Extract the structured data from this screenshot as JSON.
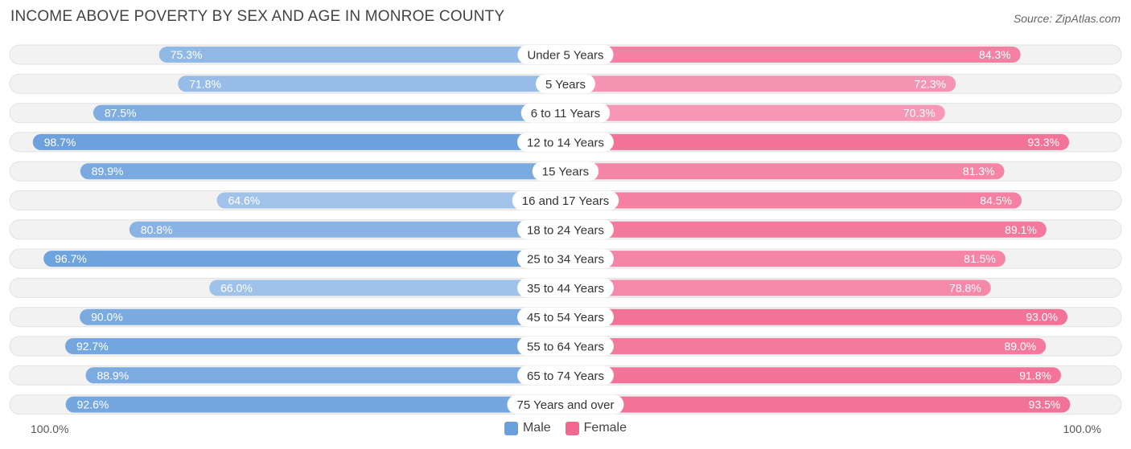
{
  "title": "INCOME ABOVE POVERTY BY SEX AND AGE IN MONROE COUNTY",
  "source": "Source: ZipAtlas.com",
  "axis": {
    "left_label": "100.0%",
    "right_label": "100.0%"
  },
  "legend": {
    "male_label": "Male",
    "female_label": "Female"
  },
  "colors": {
    "male_light": "#a8c8ec",
    "male_dark": "#6aa0dc",
    "female_light": "#f7a8c2",
    "female_dark": "#f2678f",
    "track": "#f2f2f2"
  },
  "chart_data": {
    "type": "bar",
    "orientation": "horizontal-diverging",
    "categories": [
      "Under 5 Years",
      "5 Years",
      "6 to 11 Years",
      "12 to 14 Years",
      "15 Years",
      "16 and 17 Years",
      "18 to 24 Years",
      "25 to 34 Years",
      "35 to 44 Years",
      "45 to 54 Years",
      "55 to 64 Years",
      "65 to 74 Years",
      "75 Years and over"
    ],
    "series": [
      {
        "name": "Male",
        "values": [
          75.3,
          71.8,
          87.5,
          98.7,
          89.9,
          64.6,
          80.8,
          96.7,
          66.0,
          90.0,
          92.7,
          88.9,
          92.6
        ],
        "labels": [
          "75.3%",
          "71.8%",
          "87.5%",
          "98.7%",
          "89.9%",
          "64.6%",
          "80.8%",
          "96.7%",
          "66.0%",
          "90.0%",
          "92.7%",
          "88.9%",
          "92.6%"
        ]
      },
      {
        "name": "Female",
        "values": [
          84.3,
          72.3,
          70.3,
          93.3,
          81.3,
          84.5,
          89.1,
          81.5,
          78.8,
          93.0,
          89.0,
          91.8,
          93.5
        ],
        "labels": [
          "84.3%",
          "72.3%",
          "70.3%",
          "93.3%",
          "81.3%",
          "84.5%",
          "89.1%",
          "81.5%",
          "78.8%",
          "93.0%",
          "89.0%",
          "91.8%",
          "93.5%"
        ]
      }
    ],
    "xlim": [
      0,
      100
    ],
    "legend_position": "bottom-center",
    "grid": false
  }
}
